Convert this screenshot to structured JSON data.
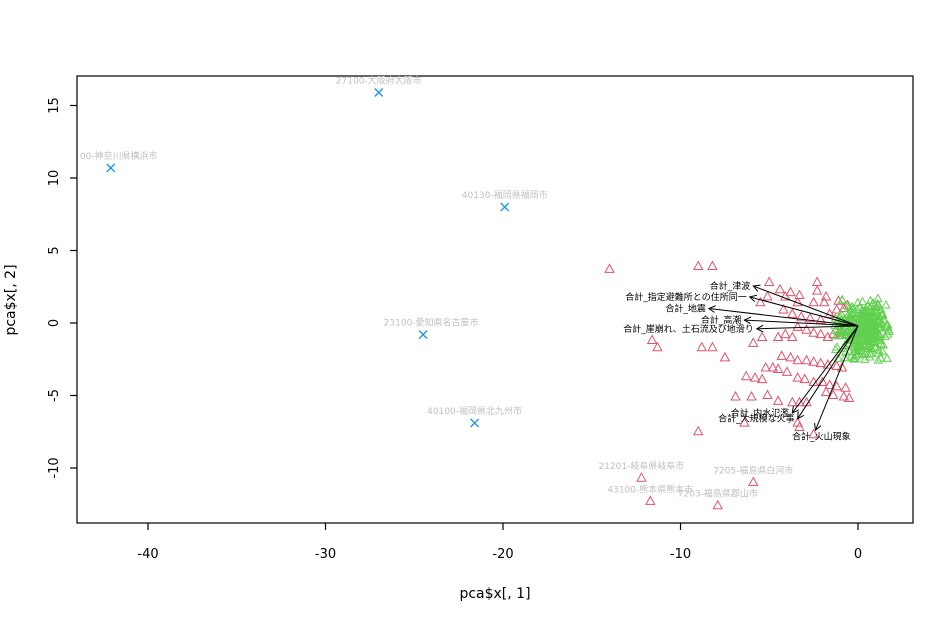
{
  "window": {
    "background": "#ffffff",
    "description": "R PCA biplot of municipality evacuation-site data"
  },
  "chart_data": {
    "type": "scatter",
    "title": "",
    "xlabel": "pca$x[, 1]",
    "ylabel": "pca$x[, 2]",
    "xlim": [
      -44,
      3.1
    ],
    "ylim": [
      -13.8,
      17.0
    ],
    "xticks": [
      -40,
      -30,
      -20,
      -10,
      0
    ],
    "yticks": [
      -10,
      -5,
      0,
      5,
      10,
      15
    ],
    "grid": false,
    "legend": "none",
    "colors": {
      "outlier_x": "#2297E6",
      "triangle": "#DF536B",
      "cluster": "#61D04F",
      "muted_label": "#bfbfbf",
      "arrow": "#000000",
      "axis": "#000000"
    },
    "labeled_outliers": [
      {
        "label": "27100-大阪府大阪市",
        "x": -27.0,
        "y": 15.9,
        "dx": 0
      },
      {
        "label": "00-神奈川県横浜市",
        "x": -42.1,
        "y": 10.7,
        "dx": 8
      },
      {
        "label": "40130-福岡県福岡市",
        "x": -19.9,
        "y": 8.0,
        "dx": 0
      },
      {
        "label": "23100-愛知県名古屋市",
        "x": -24.5,
        "y": -0.8,
        "dx": 8
      },
      {
        "label": "40100-福岡県北九州市",
        "x": -21.6,
        "y": -6.9,
        "dx": 0
      }
    ],
    "labeled_triangles": [
      {
        "label": "21201-岐阜県岐阜市",
        "x": -12.2,
        "y": -10.7
      },
      {
        "label": "7205-福島県白河市",
        "x": -5.9,
        "y": -11.0
      },
      {
        "label": "43100-熊本県熊本市",
        "x": -11.7,
        "y": -12.3
      },
      {
        "label": "7203-福島県郡山市",
        "x": -7.9,
        "y": -12.6
      }
    ],
    "triangles": [
      [
        -14.0,
        3.7
      ],
      [
        -9.0,
        3.9
      ],
      [
        -8.2,
        3.9
      ],
      [
        -5.0,
        2.8
      ],
      [
        -4.4,
        2.3
      ],
      [
        -3.8,
        2.1
      ],
      [
        -3.3,
        1.9
      ],
      [
        -2.3,
        2.8
      ],
      [
        -1.9,
        1.4
      ],
      [
        -2.5,
        1.4
      ],
      [
        -3.4,
        1.4
      ],
      [
        -4.1,
        1.8
      ],
      [
        -5.1,
        1.8
      ],
      [
        -5.5,
        1.4
      ],
      [
        -4.2,
        0.9
      ],
      [
        -3.7,
        0.6
      ],
      [
        -3.2,
        0.4
      ],
      [
        -2.7,
        0.3
      ],
      [
        -2.1,
        0.2
      ],
      [
        -1.6,
        0.6
      ],
      [
        -1.2,
        0.9
      ],
      [
        -0.8,
        1.0
      ],
      [
        -2.3,
        2.2
      ],
      [
        -1.8,
        1.8
      ],
      [
        -1.1,
        1.5
      ],
      [
        -0.6,
        1.2
      ],
      [
        -3.4,
        -0.3
      ],
      [
        -2.9,
        -0.5
      ],
      [
        -2.5,
        -0.7
      ],
      [
        -2.1,
        -0.8
      ],
      [
        -1.7,
        -1.0
      ],
      [
        -1.4,
        -0.8
      ],
      [
        -1.0,
        -0.7
      ],
      [
        -3.7,
        -1.0
      ],
      [
        -4.1,
        -0.8
      ],
      [
        -4.5,
        -1.0
      ],
      [
        -5.4,
        -1.0
      ],
      [
        -5.9,
        -1.4
      ],
      [
        -11.6,
        -1.2
      ],
      [
        -11.3,
        -1.7
      ],
      [
        -8.8,
        -1.7
      ],
      [
        -8.2,
        -1.7
      ],
      [
        -7.5,
        -2.4
      ],
      [
        -4.3,
        -2.3
      ],
      [
        -3.8,
        -2.4
      ],
      [
        -3.4,
        -2.6
      ],
      [
        -2.9,
        -2.6
      ],
      [
        -2.5,
        -2.7
      ],
      [
        -2.1,
        -2.8
      ],
      [
        -1.7,
        -2.9
      ],
      [
        -1.2,
        -3.0
      ],
      [
        -0.9,
        -3.1
      ],
      [
        -5.2,
        -3.1
      ],
      [
        -4.8,
        -3.1
      ],
      [
        -4.5,
        -3.2
      ],
      [
        -4.0,
        -3.4
      ],
      [
        -6.3,
        -3.7
      ],
      [
        -5.8,
        -3.8
      ],
      [
        -5.4,
        -3.9
      ],
      [
        -3.4,
        -3.8
      ],
      [
        -3.0,
        -3.9
      ],
      [
        -2.5,
        -4.1
      ],
      [
        -2.0,
        -4.1
      ],
      [
        -1.6,
        -4.3
      ],
      [
        -1.2,
        -4.4
      ],
      [
        -0.7,
        -4.5
      ],
      [
        -6.9,
        -5.1
      ],
      [
        -6.0,
        -5.1
      ],
      [
        -5.1,
        -5.0
      ],
      [
        -4.5,
        -5.4
      ],
      [
        -3.7,
        -5.5
      ],
      [
        -3.3,
        -5.5
      ],
      [
        -2.9,
        -5.5
      ],
      [
        -1.8,
        -4.8
      ],
      [
        -1.4,
        -5.0
      ],
      [
        -0.8,
        -5.1
      ],
      [
        -0.5,
        -5.2
      ],
      [
        -9.0,
        -7.5
      ],
      [
        -6.4,
        -6.9
      ],
      [
        -3.4,
        -6.9
      ],
      [
        -3.3,
        -7.2
      ],
      [
        -2.5,
        -7.7
      ]
    ],
    "cluster": {
      "marker": "triangle-open",
      "center": [
        0.25,
        -0.55
      ],
      "half_width": 1.7,
      "half_height": 2.3,
      "count": 300,
      "seed": 42
    },
    "loadings_origin": [
      0,
      -0.2
    ],
    "loadings": [
      {
        "label": "合計_津波",
        "x": -5.9,
        "y": 2.55,
        "label_pos": "left"
      },
      {
        "label": "合計_指定避難所との住所同一",
        "x": -6.1,
        "y": 1.8,
        "label_pos": "left"
      },
      {
        "label": "合計_地震",
        "x": -8.4,
        "y": 1.0,
        "label_pos": "left"
      },
      {
        "label": "合計_高潮",
        "x": -6.4,
        "y": 0.2,
        "label_pos": "left"
      },
      {
        "label": "合計_崖崩れ、土石流及び地滑り",
        "x": -5.7,
        "y": -0.4,
        "label_pos": "left"
      },
      {
        "label": "合計_内水氾濫",
        "x": -3.7,
        "y": -6.2,
        "label_pos": "left"
      },
      {
        "label": "合計_大規模な火事",
        "x": -3.4,
        "y": -6.6,
        "label_pos": "left"
      },
      {
        "label": "合計_火山現象",
        "x": -2.4,
        "y": -7.4,
        "label_pos": "below"
      }
    ]
  }
}
